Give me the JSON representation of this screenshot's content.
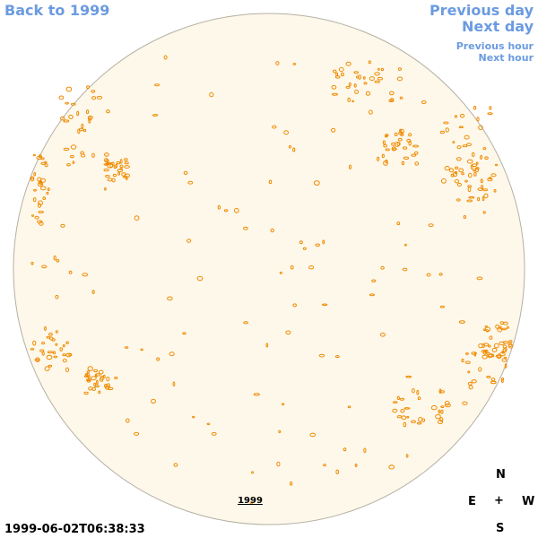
{
  "nav": {
    "back": "Back to 1999",
    "previous_day": "Previous day",
    "next_day": "Next day",
    "previous_hour": "Previous hour",
    "next_hour": "Next hour"
  },
  "disk": {
    "year_link": "1999",
    "fill_color": "#fdf8ea",
    "edge_color": "#b5b0a4",
    "contour_color": "#f08a00"
  },
  "timestamp": "1999-06-02T06:38:33",
  "compass": {
    "north": "N",
    "east": "E",
    "center": "+",
    "west": "W",
    "south": "S"
  }
}
